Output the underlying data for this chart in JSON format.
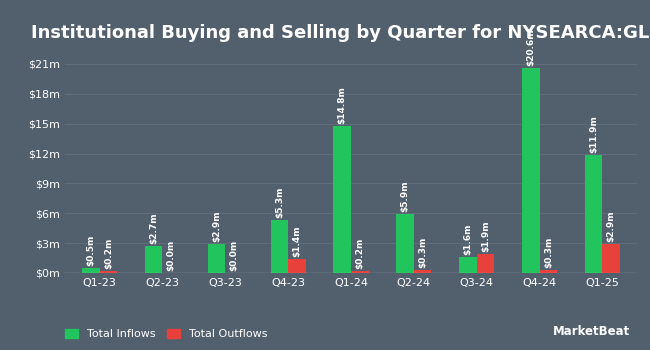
{
  "title": "Institutional Buying and Selling by Quarter for NYSEARCA:GLIN",
  "quarters": [
    "Q1-23",
    "Q2-23",
    "Q3-23",
    "Q4-23",
    "Q1-24",
    "Q2-24",
    "Q3-24",
    "Q4-24",
    "Q1-25"
  ],
  "inflows": [
    0.5,
    2.7,
    2.9,
    5.3,
    14.8,
    5.9,
    1.6,
    20.6,
    11.9
  ],
  "outflows": [
    0.2,
    0.0,
    0.0,
    1.4,
    0.2,
    0.3,
    1.9,
    0.3,
    2.9
  ],
  "inflow_labels": [
    "$0.5m",
    "$2.7m",
    "$2.9m",
    "$5.3m",
    "$14.8m",
    "$5.9m",
    "$1.6m",
    "$20.6m",
    "$11.9m"
  ],
  "outflow_labels": [
    "$0.2m",
    "$0.0m",
    "$0.0m",
    "$1.4m",
    "$0.2m",
    "$0.3m",
    "$1.9m",
    "$0.3m",
    "$2.9m"
  ],
  "inflow_color": "#21c45d",
  "outflow_color": "#e8403a",
  "bg_color": "#52606e",
  "text_color": "#ffffff",
  "grid_color": "#606e7c",
  "ylim": [
    0,
    22.5
  ],
  "yticks": [
    0,
    3,
    6,
    9,
    12,
    15,
    18,
    21
  ],
  "ytick_labels": [
    "$0m",
    "$3m",
    "$6m",
    "$9m",
    "$12m",
    "$15m",
    "$18m",
    "$21m"
  ],
  "bar_width": 0.28,
  "title_fontsize": 13,
  "label_fontsize": 6.5,
  "tick_fontsize": 8,
  "legend_fontsize": 8
}
